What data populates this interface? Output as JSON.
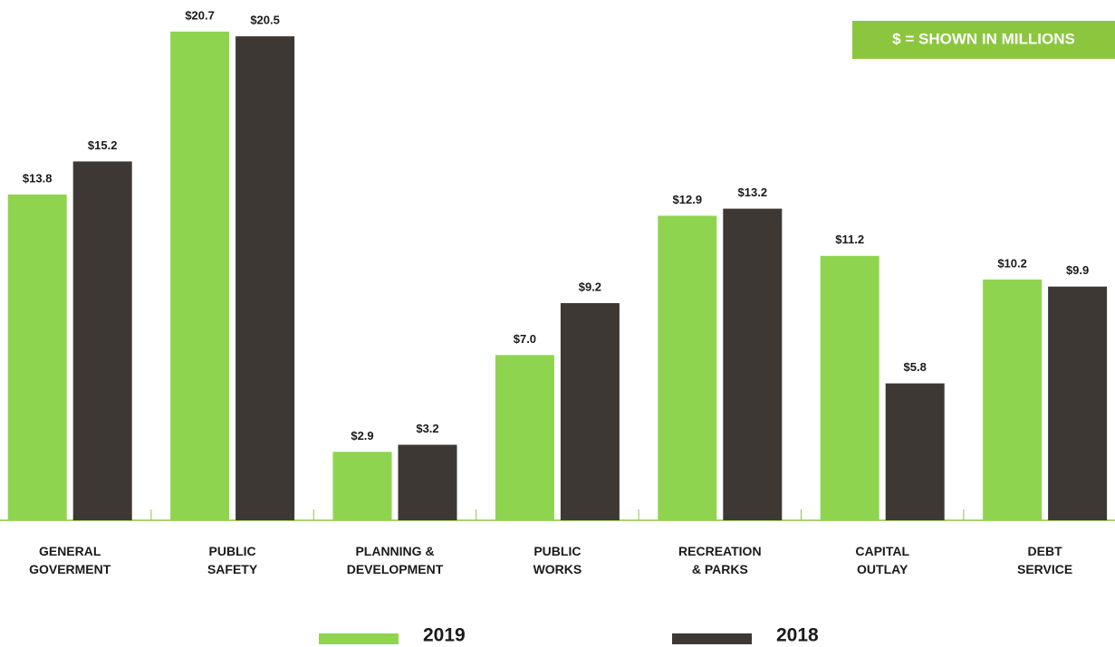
{
  "chart_data": {
    "type": "bar",
    "annotation": "$ = SHOWN IN MILLIONS",
    "categories": [
      "GENERAL\nGOVERMENT",
      "PUBLIC\nSAFETY",
      "PLANNING &\nDEVELOPMENT",
      "PUBLIC\nWORKS",
      "RECREATION\n& PARKS",
      "CAPITAL\nOUTLAY",
      "DEBT\nSERVICE"
    ],
    "series": [
      {
        "name": "2019",
        "color": "#8fd44f",
        "values": [
          13.8,
          20.7,
          2.9,
          7.0,
          12.9,
          11.2,
          10.2
        ],
        "value_labels": [
          "$13.8",
          "$20.7",
          "$2.9",
          "$7.0",
          "$12.9",
          "$11.2",
          "$10.2"
        ]
      },
      {
        "name": "2018",
        "color": "#3d3834",
        "values": [
          15.2,
          20.5,
          3.2,
          9.2,
          13.2,
          5.8,
          9.9
        ],
        "value_labels": [
          "$15.2",
          "$20.5",
          "$3.2",
          "$9.2",
          "$13.2",
          "$5.8",
          "$9.9"
        ]
      }
    ],
    "ylim": [
      0,
      22
    ]
  }
}
